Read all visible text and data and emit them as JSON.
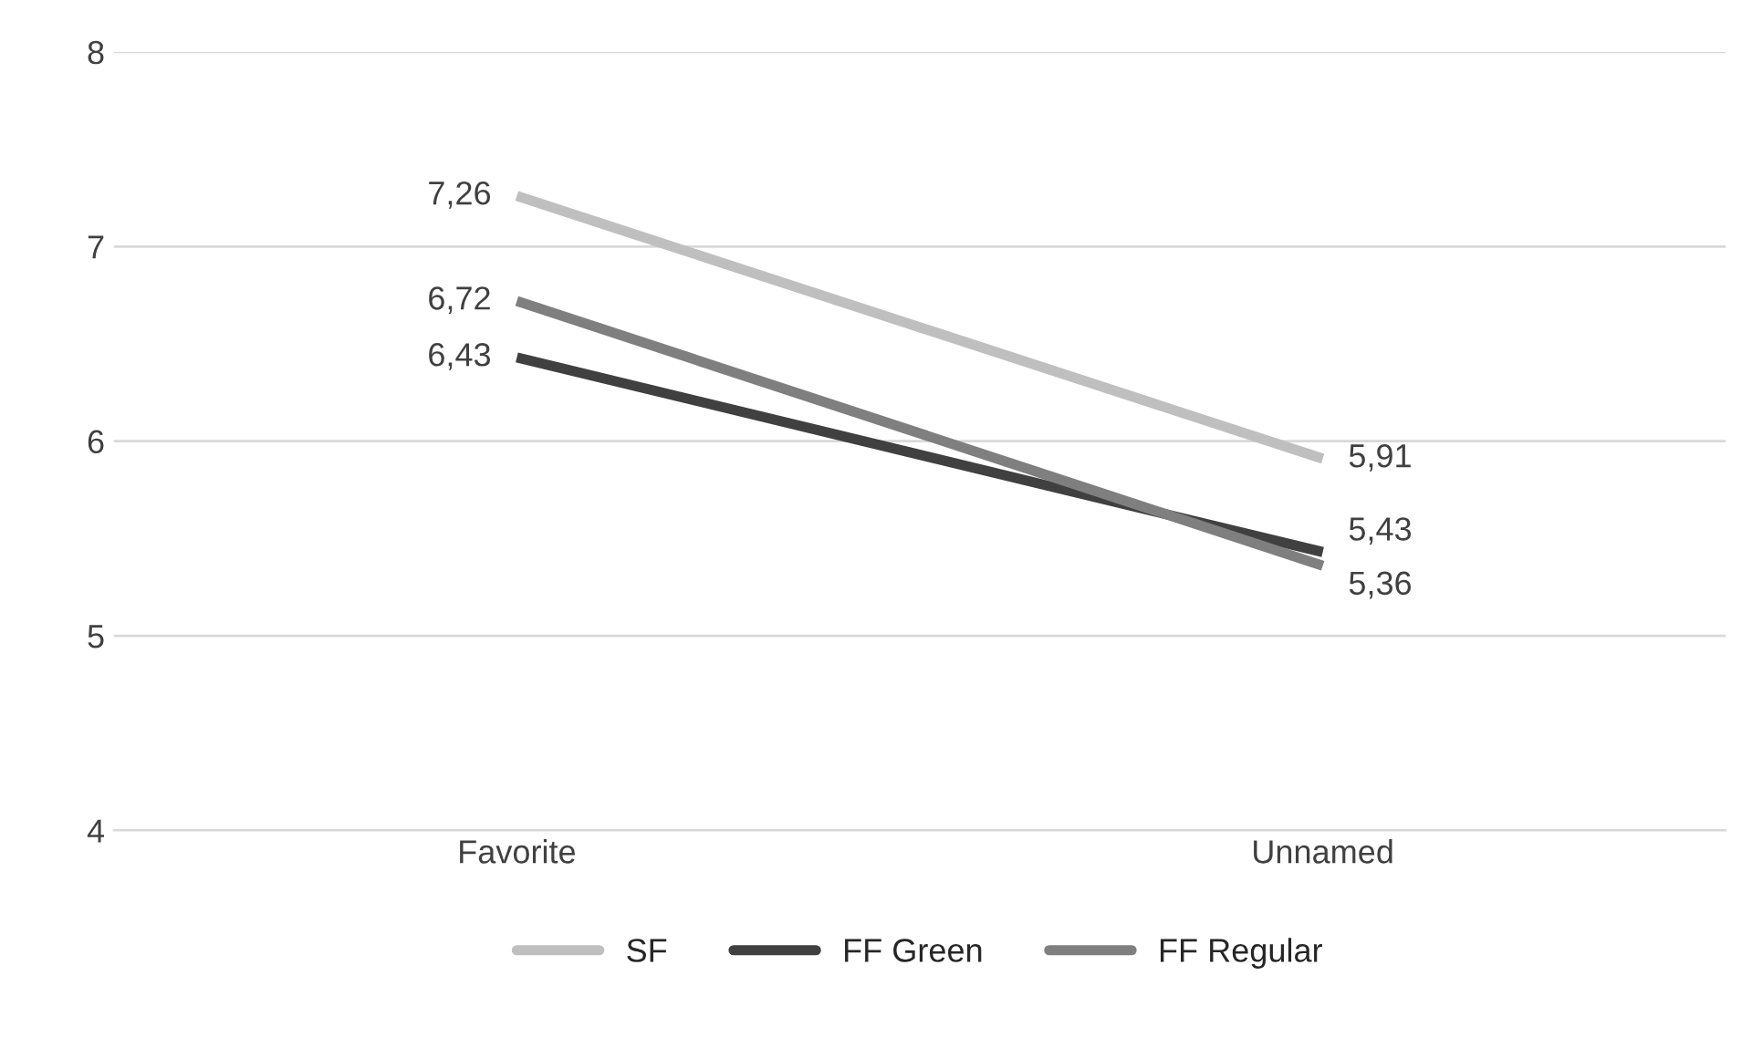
{
  "chart_data": {
    "type": "line",
    "categories": [
      "Favorite",
      "Unnamed"
    ],
    "series": [
      {
        "name": "SF",
        "color": "#bfbfbf",
        "values": [
          7.26,
          5.91
        ],
        "value_labels": [
          "7,26",
          "5,91"
        ]
      },
      {
        "name": "FF Green",
        "color": "#404040",
        "values": [
          6.43,
          5.43
        ],
        "value_labels": [
          "6,43",
          "5,43"
        ]
      },
      {
        "name": "FF Regular",
        "color": "#7f7f7f",
        "values": [
          6.72,
          5.36
        ],
        "value_labels": [
          "6,72",
          "5,36"
        ]
      }
    ],
    "ylim": [
      4,
      8
    ],
    "yticks": [
      4,
      5,
      6,
      7,
      8
    ],
    "grid": "y",
    "legend": "bottom",
    "marker": "none",
    "line_style": "solid"
  }
}
